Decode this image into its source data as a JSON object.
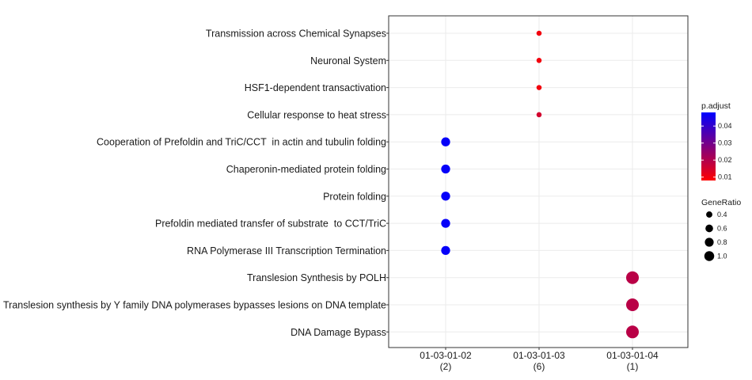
{
  "chart_data": {
    "type": "scatter",
    "title": "",
    "xlabel": "",
    "ylabel": "",
    "grid": true,
    "legend_position": "right",
    "categories_x": [
      {
        "label": "01-03-01-02",
        "count": "(2)"
      },
      {
        "label": "01-03-01-03",
        "count": "(6)"
      },
      {
        "label": "01-03-01-04",
        "count": "(1)"
      }
    ],
    "categories_y": [
      "Transmission across Chemical Synapses",
      "Neuronal System",
      "HSF1-dependent transactivation",
      "Cellular response to heat stress",
      "Cooperation of Prefoldin and TriC/CCT  in actin and tubulin folding",
      "Chaperonin-mediated protein folding",
      "Protein folding",
      "Prefoldin mediated transfer of substrate  to CCT/TriC",
      "RNA Polymerase III Transcription Termination",
      "Translesion Synthesis by POLH",
      "Translesion synthesis by Y family DNA polymerases bypasses lesions on DNA template",
      "DNA Damage Bypass"
    ],
    "points": [
      {
        "y": "Transmission across Chemical Synapses",
        "x": "01-03-01-03",
        "gene_ratio": 0.167,
        "p_adjust": 0.01
      },
      {
        "y": "Neuronal System",
        "x": "01-03-01-03",
        "gene_ratio": 0.167,
        "p_adjust": 0.01
      },
      {
        "y": "HSF1-dependent transactivation",
        "x": "01-03-01-03",
        "gene_ratio": 0.167,
        "p_adjust": 0.01
      },
      {
        "y": "Cellular response to heat stress",
        "x": "01-03-01-03",
        "gene_ratio": 0.167,
        "p_adjust": 0.015
      },
      {
        "y": "Cooperation of Prefoldin and TriC/CCT  in actin and tubulin folding",
        "x": "01-03-01-02",
        "gene_ratio": 0.5,
        "p_adjust": 0.047
      },
      {
        "y": "Chaperonin-mediated protein folding",
        "x": "01-03-01-02",
        "gene_ratio": 0.5,
        "p_adjust": 0.047
      },
      {
        "y": "Protein folding",
        "x": "01-03-01-02",
        "gene_ratio": 0.5,
        "p_adjust": 0.047
      },
      {
        "y": "Prefoldin mediated transfer of substrate  to CCT/TriC",
        "x": "01-03-01-02",
        "gene_ratio": 0.5,
        "p_adjust": 0.047
      },
      {
        "y": "RNA Polymerase III Transcription Termination",
        "x": "01-03-01-02",
        "gene_ratio": 0.5,
        "p_adjust": 0.047
      },
      {
        "y": "Translesion Synthesis by POLH",
        "x": "01-03-01-04",
        "gene_ratio": 1.0,
        "p_adjust": 0.019
      },
      {
        "y": "Translesion synthesis by Y family DNA polymerases bypasses lesions on DNA template",
        "x": "01-03-01-04",
        "gene_ratio": 1.0,
        "p_adjust": 0.019
      },
      {
        "y": "DNA Damage Bypass",
        "x": "01-03-01-04",
        "gene_ratio": 1.0,
        "p_adjust": 0.019
      }
    ],
    "color_legend": {
      "title": "p.adjust",
      "ticks": [
        "0.01",
        "0.02",
        "0.03",
        "0.04"
      ],
      "tick_values": [
        0.01,
        0.02,
        0.03,
        0.04
      ],
      "range": [
        0.008,
        0.048
      ],
      "low_color": "#ff0000",
      "high_color": "#0000ff"
    },
    "size_legend": {
      "title": "GeneRatio",
      "ticks": [
        "0.4",
        "0.6",
        "0.8",
        "1.0"
      ],
      "tick_values": [
        0.4,
        0.6,
        0.8,
        1.0
      ]
    }
  }
}
